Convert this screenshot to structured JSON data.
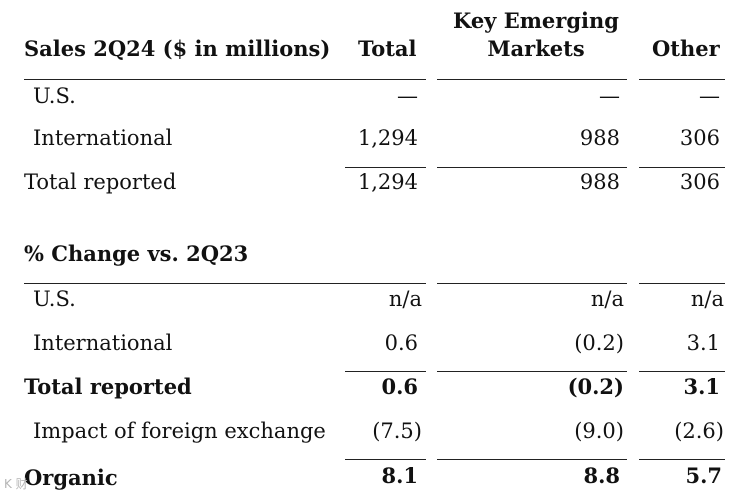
{
  "header": {
    "title": "Sales 2Q24 ($ in millions)",
    "col_total": "Total",
    "col_kem_line1": "Key Emerging",
    "col_kem_line2": "Markets",
    "col_other": "Other"
  },
  "sales": {
    "rows": [
      {
        "label": "U.S.",
        "total": "—",
        "kem": "—",
        "other": "—"
      },
      {
        "label": "International",
        "total": "1,294",
        "kem": "988",
        "other": "306"
      },
      {
        "label": "Total reported",
        "total": "1,294",
        "kem": "988",
        "other": "306"
      }
    ]
  },
  "change": {
    "title": "% Change vs. 2Q23",
    "rows": [
      {
        "label": "U.S.",
        "total": "n/a",
        "kem": "n/a",
        "other": "n/a"
      },
      {
        "label": "International",
        "total": "0.6",
        "kem": "(0.2)",
        "other": "3.1"
      },
      {
        "label": "Total reported",
        "total": "0.6",
        "kem": "(0.2)",
        "other": "3.1"
      },
      {
        "label": "Impact of foreign exchange",
        "total": "(7.5)",
        "kem": "(9.0)",
        "other": "(2.6)"
      },
      {
        "label": "Organic",
        "total": "8.1",
        "kem": "8.8",
        "other": "5.7"
      }
    ]
  },
  "watermark": "K 财"
}
